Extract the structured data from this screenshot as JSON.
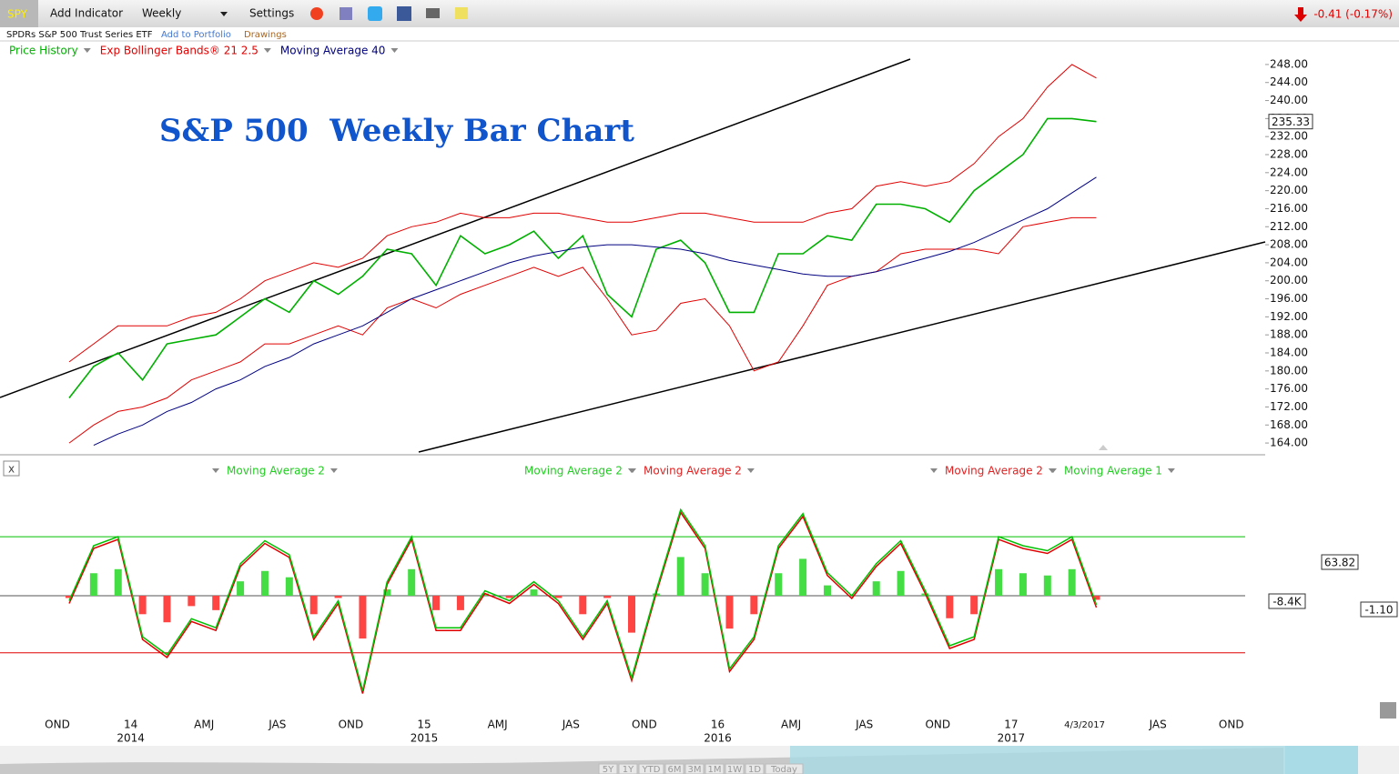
{
  "toolbar": {
    "symbol": "SPY",
    "menu": [
      "Add Indicator",
      "Weekly",
      "Settings"
    ],
    "change": "-0.41 (-0.17%)"
  },
  "subbar": {
    "name": "SPDRs S&P 500 Trust Series ETF",
    "links": [
      "Add to Portfolio",
      "Drawings"
    ]
  },
  "chart_data": [
    {
      "type": "line",
      "title": "S&P 500  Weekly Bar Chart",
      "categories": [
        "OND",
        null,
        null,
        "14",
        null,
        null,
        "AMJ",
        null,
        null,
        "JAS",
        null,
        null,
        "OND",
        null,
        null,
        "15",
        null,
        null,
        "AMJ",
        null,
        null,
        "JAS",
        null,
        null,
        "OND",
        null,
        null,
        "16",
        null,
        null,
        "AMJ",
        null,
        null,
        "JAS",
        null,
        null,
        "OND",
        null,
        null,
        "17",
        null,
        null,
        "4/3/2017",
        null,
        null,
        "JAS",
        null,
        null,
        "OND",
        null,
        null
      ],
      "years": [
        null,
        null,
        null,
        "2014",
        null,
        null,
        null,
        null,
        null,
        null,
        null,
        null,
        null,
        null,
        null,
        "2015",
        null,
        null,
        null,
        null,
        null,
        null,
        null,
        null,
        null,
        null,
        null,
        "2016",
        null,
        null,
        null,
        null,
        null,
        null,
        null,
        null,
        null,
        null,
        null,
        "2017",
        null,
        null,
        null,
        null,
        null,
        null,
        null,
        null,
        null,
        null,
        null
      ],
      "series": [
        {
          "name": "Price History",
          "color": "#00b000",
          "values": [
            174,
            181,
            184,
            178,
            186,
            187,
            188,
            192,
            196,
            193,
            200,
            197,
            201,
            207,
            206,
            199,
            210,
            206,
            208,
            211,
            205,
            210,
            197,
            192,
            207,
            209,
            204,
            193,
            193,
            206,
            206,
            210,
            209,
            217,
            217,
            216,
            213,
            220,
            224,
            228,
            236,
            236,
            235.33,
            null,
            null,
            null,
            null,
            null,
            null,
            null,
            null
          ]
        },
        {
          "name": "Exp Bollinger Bands® 21 2.5",
          "color": "#e00000",
          "values": [
            182,
            186,
            190,
            190,
            190,
            192,
            193,
            196,
            200,
            202,
            204,
            203,
            205,
            210,
            212,
            213,
            215,
            214,
            214,
            215,
            215,
            214,
            213,
            213,
            214,
            215,
            215,
            214,
            213,
            213,
            213,
            215,
            216,
            221,
            222,
            221,
            222,
            226,
            232,
            236,
            243,
            248,
            245,
            null,
            null,
            null,
            null,
            null,
            null,
            null,
            null
          ],
          "lower": [
            164,
            168,
            171,
            172,
            174,
            178,
            180,
            182,
            186,
            186,
            188,
            190,
            188,
            194,
            196,
            194,
            197,
            199,
            201,
            203,
            201,
            203,
            196,
            188,
            189,
            195,
            196,
            190,
            180,
            182,
            190,
            199,
            201,
            202,
            206,
            207,
            207,
            207,
            206,
            212,
            213,
            214,
            214,
            null,
            null,
            null,
            null,
            null,
            null,
            null,
            null
          ]
        },
        {
          "name": "Moving Average 40",
          "color": "#000080",
          "values": [
            null,
            163.5,
            166,
            168,
            171,
            173,
            176,
            178,
            181,
            183,
            186,
            188,
            190,
            193,
            196,
            198,
            200,
            202,
            204,
            205.5,
            206.5,
            207.5,
            208,
            208,
            207.5,
            207,
            206,
            204.5,
            203.5,
            202.5,
            201.5,
            201,
            201,
            202,
            203.5,
            205,
            206.5,
            208.5,
            211,
            213.5,
            216,
            219.5,
            223,
            null,
            null,
            null,
            null,
            null,
            null,
            null,
            null
          ]
        }
      ],
      "ylim": [
        162,
        250
      ],
      "yticks": [
        {
          "value": 164,
          "label": "164.00"
        },
        {
          "value": 168,
          "label": "168.00"
        },
        {
          "value": 172,
          "label": "172.00"
        },
        {
          "value": 176,
          "label": "176.00"
        },
        {
          "value": 180,
          "label": "180.00"
        },
        {
          "value": 184,
          "label": "184.00"
        },
        {
          "value": 188,
          "label": "188.00"
        },
        {
          "value": 192,
          "label": "192.00"
        },
        {
          "value": 196,
          "label": "196.00"
        },
        {
          "value": 200,
          "label": "200.00"
        },
        {
          "value": 204,
          "label": "204.00"
        },
        {
          "value": 208,
          "label": "208.00"
        },
        {
          "value": 212,
          "label": "212.00"
        },
        {
          "value": 216,
          "label": "216.00"
        },
        {
          "value": 220,
          "label": "220.00"
        },
        {
          "value": 224,
          "label": "224.00"
        },
        {
          "value": 228,
          "label": "228.00"
        },
        {
          "value": 232,
          "label": "232.00"
        },
        {
          "value": 236,
          "label": "236.00"
        },
        {
          "value": 240,
          "label": "240.00"
        },
        {
          "value": 244,
          "label": "244.00"
        },
        {
          "value": 248,
          "label": "248.00"
        }
      ]
    },
    {
      "type": "oscillator",
      "series": [
        {
          "name": "Moving Average 2",
          "color": "#00c000",
          "values": [
            -0.05,
            0.5,
            0.59,
            -0.41,
            -0.59,
            -0.23,
            -0.32,
            0.32,
            0.55,
            0.41,
            -0.41,
            -0.05,
            -0.95,
            0.14,
            0.59,
            -0.32,
            -0.32,
            0.05,
            -0.05,
            0.14,
            -0.05,
            -0.41,
            -0.05,
            -0.82,
            0.05,
            0.86,
            0.5,
            -0.73,
            -0.41,
            0.5,
            0.82,
            0.23,
            0,
            0.32,
            0.55,
            0.05,
            -0.5,
            -0.41,
            0.59,
            0.5,
            0.45,
            0.59,
            -0.09,
            null,
            null,
            null,
            null,
            null,
            null,
            null,
            null
          ]
        }
      ],
      "levels": [
        {
          "value": 0.59,
          "color": "#00c000"
        },
        {
          "value": -0.57,
          "color": "#e00000"
        }
      ],
      "ylim": [
        -1,
        1
      ]
    }
  ],
  "oscillator_labels": [
    {
      "text": "Moving Average 2",
      "color": "#22cc22"
    },
    {
      "text": "Moving Average 2",
      "color": "#22cc22"
    },
    {
      "text": "Moving Average 2",
      "color": "#e02020"
    },
    {
      "text": "Moving Average 2",
      "color": "#e02020"
    },
    {
      "text": "Moving Average 1",
      "color": "#22cc22"
    }
  ],
  "value_boxes": [
    "63.82",
    "-8.4K",
    "-1.10"
  ],
  "range_buttons": [
    "5Y",
    "1Y",
    "YTD",
    "6M",
    "3M",
    "1M",
    "1W",
    "1D",
    "Today"
  ]
}
